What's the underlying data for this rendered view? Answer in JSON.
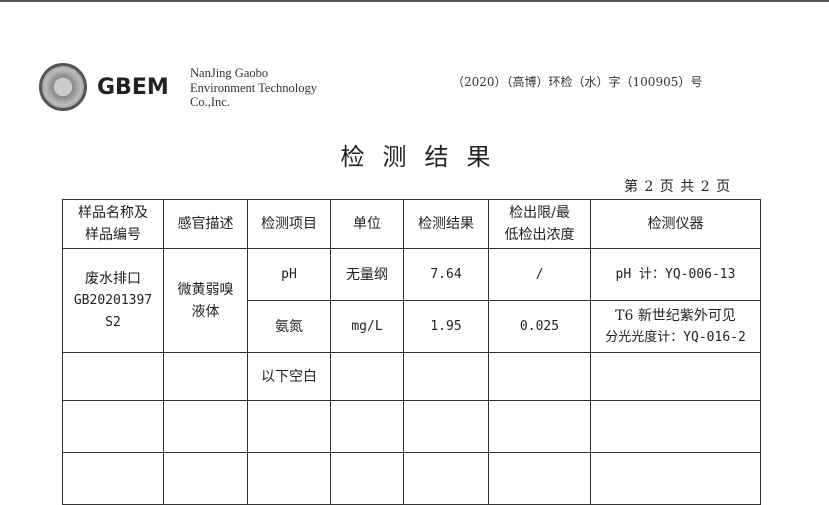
{
  "header": {
    "brand": "GBEM",
    "company_lines": [
      "NanJing Gaobo",
      "Environment Technology",
      "Co.,Inc."
    ],
    "report_number": "（2020）（高博）环检（水）字（100905）号"
  },
  "title": "检测结果",
  "page_info": "第 2 页 共 2 页",
  "table": {
    "headers": [
      "样品名称及样品编号",
      "感官描述",
      "检测项目",
      "单位",
      "检测结果",
      "检出限/最低检出浓度",
      "检测仪器"
    ],
    "header_lines": [
      [
        "样品名称及",
        "样品编号"
      ],
      [
        "感官描述"
      ],
      [
        "检测项目"
      ],
      [
        "单位"
      ],
      [
        "检测结果"
      ],
      [
        "检出限/最",
        "低检出浓度"
      ],
      [
        "检测仪器"
      ]
    ],
    "sample": {
      "name": "废水排口",
      "code": "GB20201397",
      "code2": "S2",
      "description": "微黄弱嗅",
      "description2": "液体"
    },
    "rows": [
      {
        "item": "pH",
        "unit": "无量纲",
        "result": "7.64",
        "limit": "/",
        "instrument": "pH 计：YQ-006-13",
        "instrument2": ""
      },
      {
        "item": "氨氮",
        "unit": "mg/L",
        "result": "1.95",
        "limit": "0.025",
        "instrument": "T6 新世纪紫外可见",
        "instrument2": "分光光度计：YQ-016-2"
      }
    ],
    "blank_note": "以下空白"
  }
}
